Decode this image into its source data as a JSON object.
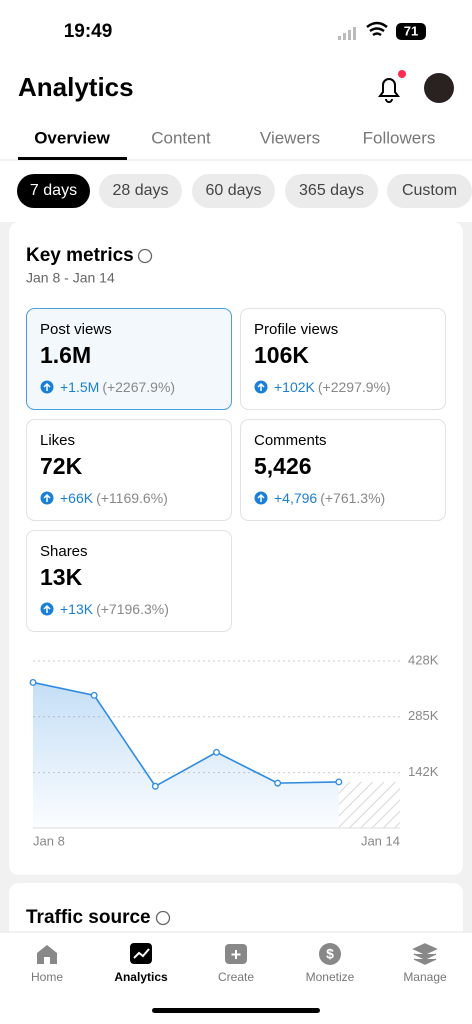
{
  "status_bar": {
    "time": "19:49",
    "battery": "71"
  },
  "header": {
    "title": "Analytics"
  },
  "tabs": [
    "Overview",
    "Content",
    "Viewers",
    "Followers"
  ],
  "ranges": [
    "7 days",
    "28 days",
    "60 days",
    "365 days",
    "Custom"
  ],
  "key_metrics": {
    "title": "Key metrics",
    "date_range": "Jan 8 - Jan 14",
    "cards": [
      {
        "label": "Post views",
        "value": "1.6M",
        "change": "+1.5M",
        "percent": "(+2267.9%)"
      },
      {
        "label": "Profile views",
        "value": "106K",
        "change": "+102K",
        "percent": "(+2297.9%)"
      },
      {
        "label": "Likes",
        "value": "72K",
        "change": "+66K",
        "percent": "(+1169.6%)"
      },
      {
        "label": "Comments",
        "value": "5,426",
        "change": "+4,796",
        "percent": "(+761.3%)"
      },
      {
        "label": "Shares",
        "value": "13K",
        "change": "+13K",
        "percent": "(+7196.3%)"
      }
    ]
  },
  "chart": {
    "type": "line",
    "categories": [
      "Jan 8",
      null,
      null,
      null,
      null,
      null,
      "Jan 14"
    ],
    "values": [
      373000,
      340000,
      107000,
      194000,
      115000,
      118000,
      null
    ],
    "color": "#2f8be0",
    "ylim": [
      0,
      428000
    ],
    "yticks": [
      {
        "value": 142000,
        "label": "142K"
      },
      {
        "value": 285000,
        "label": "285K"
      },
      {
        "value": 428000,
        "label": "428K"
      }
    ],
    "grid": true
  },
  "traffic_source": {
    "title": "Traffic source"
  },
  "nav": [
    "Home",
    "Analytics",
    "Create",
    "Monetize",
    "Manage"
  ]
}
